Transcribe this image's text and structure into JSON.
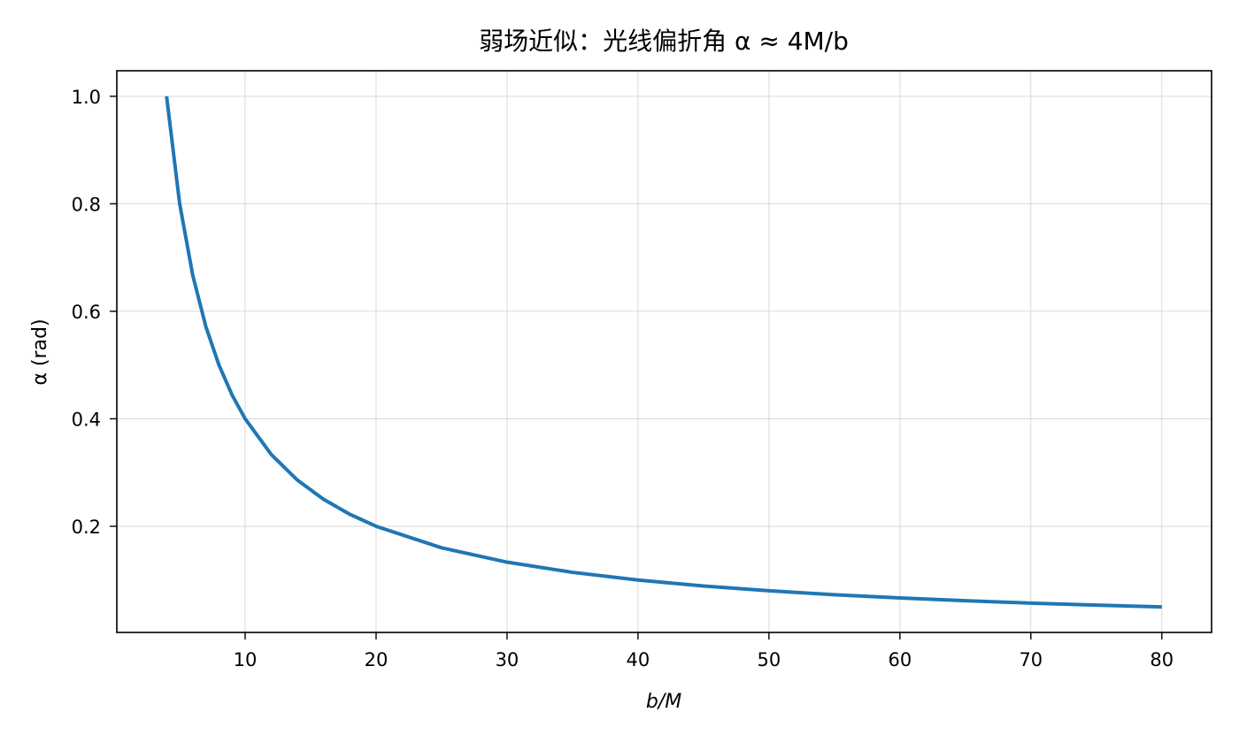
{
  "chart_data": {
    "type": "line",
    "title": "弱场近似：光线偏折角 α ≈ 4M/b",
    "xlabel": "b/M",
    "ylabel": "α (rad)",
    "x_range": [
      4,
      80
    ],
    "xlim": [
      0.2,
      83.8
    ],
    "ylim": [
      0.0025,
      1.0475
    ],
    "x_ticks": [
      10,
      20,
      30,
      40,
      50,
      60,
      70,
      80
    ],
    "x_tick_labels": [
      "10",
      "20",
      "30",
      "40",
      "50",
      "60",
      "70",
      "80"
    ],
    "y_ticks": [
      0.2,
      0.4,
      0.6,
      0.8,
      1.0
    ],
    "y_tick_labels": [
      "0.2",
      "0.4",
      "0.6",
      "0.8",
      "1.0"
    ],
    "grid": true,
    "series": [
      {
        "color": "#1f77b4",
        "x": [
          4,
          5,
          6,
          7,
          8,
          9,
          10,
          12,
          14,
          16,
          18,
          20,
          25,
          30,
          35,
          40,
          45,
          50,
          55,
          60,
          65,
          70,
          75,
          80
        ],
        "y": [
          1.0,
          0.8,
          0.6667,
          0.5714,
          0.5,
          0.4444,
          0.4,
          0.3333,
          0.2857,
          0.25,
          0.2222,
          0.2,
          0.16,
          0.1333,
          0.1143,
          0.1,
          0.0889,
          0.08,
          0.0727,
          0.0667,
          0.0615,
          0.0571,
          0.0533,
          0.05
        ]
      }
    ]
  }
}
